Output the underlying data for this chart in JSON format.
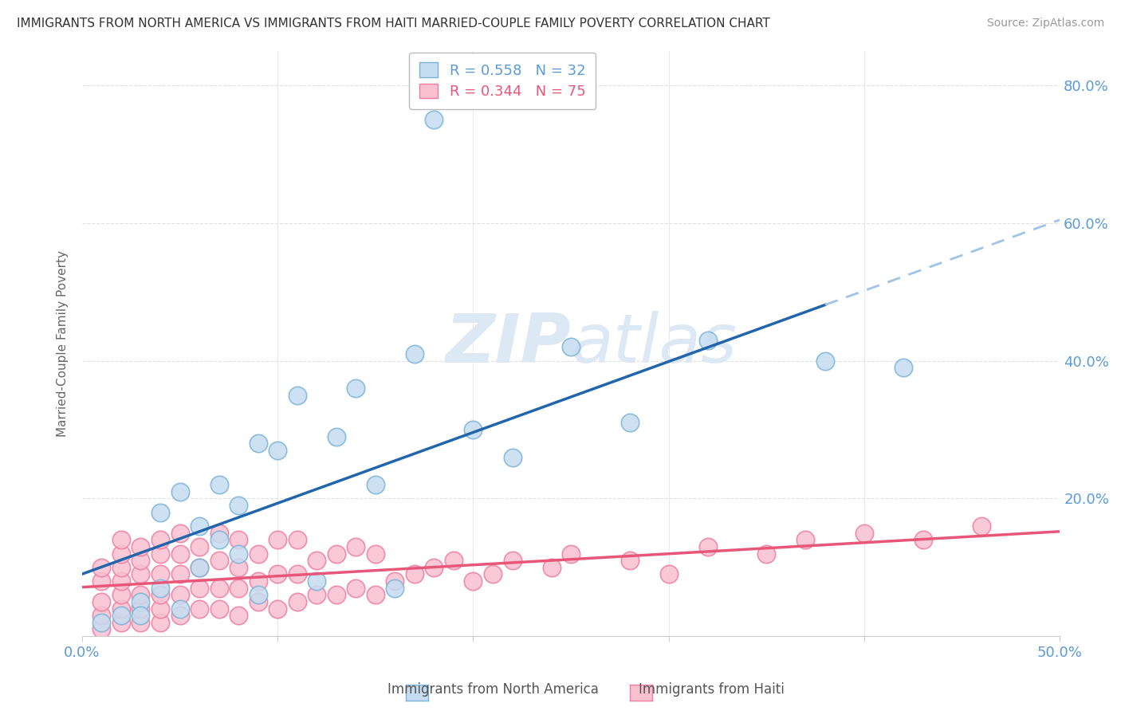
{
  "title": "IMMIGRANTS FROM NORTH AMERICA VS IMMIGRANTS FROM HAITI MARRIED-COUPLE FAMILY POVERTY CORRELATION CHART",
  "source": "Source: ZipAtlas.com",
  "ylabel": "Married-Couple Family Poverty",
  "xlim": [
    0.0,
    0.5
  ],
  "ylim": [
    0.0,
    0.85
  ],
  "color_blue_fill": "#c6dcf0",
  "color_blue_edge": "#7ab3d9",
  "color_pink_fill": "#f9c0d0",
  "color_pink_edge": "#f07ca0",
  "color_blue_line": "#2166ac",
  "color_pink_line": "#e8567a",
  "color_blue_line_dash": "#a0c4e8",
  "color_axis_text": "#5b9bd5",
  "color_title": "#333333",
  "color_source": "#999999",
  "color_ylabel": "#666666",
  "color_grid": "#e0e0e0",
  "watermark_color": "#dde8f5",
  "legend_label_blue": "R = 0.558   N = 32",
  "legend_label_pink": "R = 0.344   N = 75",
  "bottom_label_blue": "Immigrants from North America",
  "bottom_label_pink": "Immigrants from Haiti",
  "na_x": [
    0.01,
    0.02,
    0.03,
    0.03,
    0.04,
    0.04,
    0.05,
    0.05,
    0.06,
    0.06,
    0.07,
    0.07,
    0.08,
    0.08,
    0.09,
    0.09,
    0.1,
    0.11,
    0.12,
    0.13,
    0.14,
    0.15,
    0.16,
    0.17,
    0.18,
    0.2,
    0.22,
    0.25,
    0.28,
    0.32,
    0.38,
    0.42
  ],
  "na_y": [
    0.02,
    0.03,
    0.05,
    0.03,
    0.07,
    0.18,
    0.04,
    0.21,
    0.1,
    0.16,
    0.14,
    0.22,
    0.12,
    0.19,
    0.28,
    0.06,
    0.27,
    0.35,
    0.08,
    0.29,
    0.36,
    0.22,
    0.07,
    0.41,
    0.75,
    0.3,
    0.26,
    0.42,
    0.31,
    0.43,
    0.4,
    0.39
  ],
  "ht_x": [
    0.01,
    0.01,
    0.01,
    0.01,
    0.01,
    0.02,
    0.02,
    0.02,
    0.02,
    0.02,
    0.02,
    0.02,
    0.03,
    0.03,
    0.03,
    0.03,
    0.03,
    0.03,
    0.04,
    0.04,
    0.04,
    0.04,
    0.04,
    0.04,
    0.05,
    0.05,
    0.05,
    0.05,
    0.05,
    0.06,
    0.06,
    0.06,
    0.06,
    0.07,
    0.07,
    0.07,
    0.07,
    0.08,
    0.08,
    0.08,
    0.08,
    0.09,
    0.09,
    0.09,
    0.1,
    0.1,
    0.1,
    0.11,
    0.11,
    0.11,
    0.12,
    0.12,
    0.13,
    0.13,
    0.14,
    0.14,
    0.15,
    0.15,
    0.16,
    0.17,
    0.18,
    0.19,
    0.2,
    0.21,
    0.22,
    0.24,
    0.25,
    0.28,
    0.3,
    0.32,
    0.35,
    0.37,
    0.4,
    0.43,
    0.46
  ],
  "ht_y": [
    0.01,
    0.03,
    0.05,
    0.08,
    0.1,
    0.02,
    0.04,
    0.06,
    0.08,
    0.1,
    0.12,
    0.14,
    0.02,
    0.04,
    0.06,
    0.09,
    0.11,
    0.13,
    0.02,
    0.04,
    0.06,
    0.09,
    0.12,
    0.14,
    0.03,
    0.06,
    0.09,
    0.12,
    0.15,
    0.04,
    0.07,
    0.1,
    0.13,
    0.04,
    0.07,
    0.11,
    0.15,
    0.03,
    0.07,
    0.1,
    0.14,
    0.05,
    0.08,
    0.12,
    0.04,
    0.09,
    0.14,
    0.05,
    0.09,
    0.14,
    0.06,
    0.11,
    0.06,
    0.12,
    0.07,
    0.13,
    0.06,
    0.12,
    0.08,
    0.09,
    0.1,
    0.11,
    0.08,
    0.09,
    0.11,
    0.1,
    0.12,
    0.11,
    0.09,
    0.13,
    0.12,
    0.14,
    0.15,
    0.14,
    0.16
  ]
}
